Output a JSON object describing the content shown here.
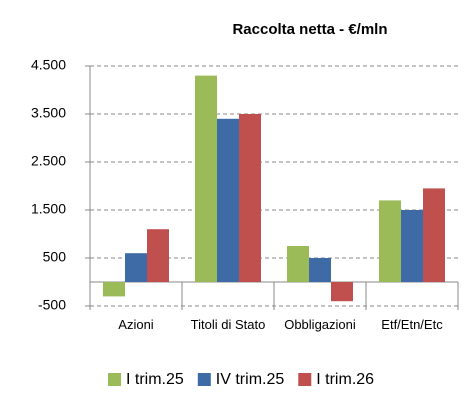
{
  "chart_data": {
    "type": "bar",
    "title": "Raccolta netta - €/mln",
    "categories": [
      "Azioni",
      "Titoli di Stato",
      "Obbligazioni",
      "Etf/Etn/Etc"
    ],
    "series": [
      {
        "name": "I trim.25",
        "color": "#9bbb59",
        "values": [
          -300,
          4300,
          750,
          1700
        ]
      },
      {
        "name": "IV trim.25",
        "color": "#3e6aa6",
        "values": [
          600,
          3400,
          500,
          1500
        ]
      },
      {
        "name": "I trim.26",
        "color": "#c0504d",
        "values": [
          1100,
          3500,
          -400,
          1950
        ]
      }
    ],
    "ylim": [
      -500,
      4500
    ],
    "yticks": [
      -500,
      500,
      {
        "value": 1500,
        "label": "1.500"
      },
      {
        "value": 2500,
        "label": "2.500"
      },
      {
        "value": 3500,
        "label": "3.500"
      },
      {
        "value": 4500,
        "label": "4.500"
      }
    ],
    "grid": true,
    "legend": "bottom"
  }
}
